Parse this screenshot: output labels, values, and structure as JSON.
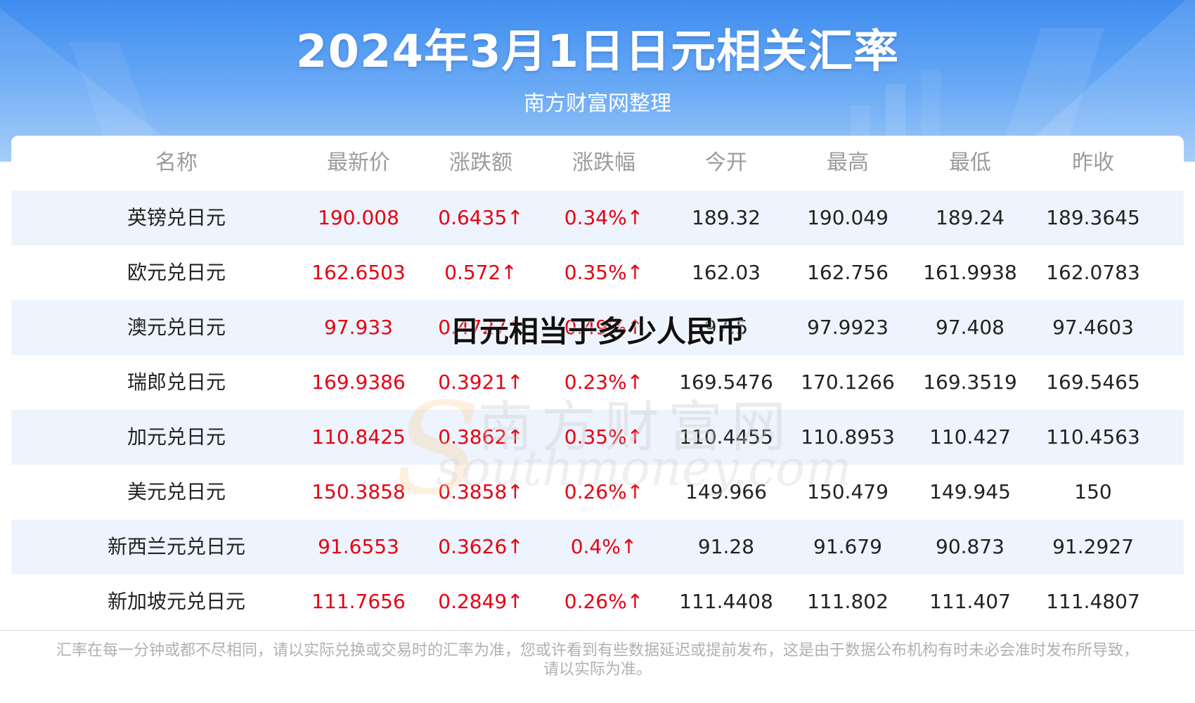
{
  "header": {
    "title": "2024年3月1日日元相关汇率",
    "subtitle": "南方财富网整理"
  },
  "table": {
    "columns": [
      "名称",
      "最新价",
      "涨跌额",
      "涨跌幅",
      "今开",
      "最高",
      "最低",
      "昨收"
    ],
    "rows": [
      [
        "英镑兑日元",
        "190.008",
        "0.6435↑",
        "0.34%↑",
        "189.32",
        "190.049",
        "189.24",
        "189.3645"
      ],
      [
        "欧元兑日元",
        "162.6503",
        "0.572↑",
        "0.35%↑",
        "162.03",
        "162.756",
        "161.9938",
        "162.0783"
      ],
      [
        "澳元兑日元",
        "97.933",
        "0.4727↑",
        "0.49%↑",
        "97.5",
        "97.9923",
        "97.408",
        "97.4603"
      ],
      [
        "瑞郎兑日元",
        "169.9386",
        "0.3921↑",
        "0.23%↑",
        "169.5476",
        "170.1266",
        "169.3519",
        "169.5465"
      ],
      [
        "加元兑日元",
        "110.8425",
        "0.3862↑",
        "0.35%↑",
        "110.4455",
        "110.8953",
        "110.427",
        "110.4563"
      ],
      [
        "美元兑日元",
        "150.3858",
        "0.3858↑",
        "0.26%↑",
        "149.966",
        "150.479",
        "149.945",
        "150"
      ],
      [
        "新西兰元兑日元",
        "91.6553",
        "0.3626↑",
        "0.4%↑",
        "91.28",
        "91.679",
        "90.873",
        "91.2927"
      ],
      [
        "新加坡元兑日元",
        "111.7656",
        "0.2849↑",
        "0.26%↑",
        "111.4408",
        "111.802",
        "111.407",
        "111.4807"
      ]
    ]
  },
  "overlay_text": "日元相当于多少人民币",
  "watermark": {
    "cn": "南方财富网",
    "en": "southmoney.com"
  },
  "footer": {
    "disclaimer": "汇率在每一分钟或都不尽相同，请以实际兑换或交易时的汇率为准，您或许看到有些数据延迟或提前发布，这是由于数据公布机构有时未必会准时发布所导致，请以实际为准。"
  },
  "colors": {
    "up": "#e60012",
    "header_blue": "#3f8df0",
    "alt_row": "#eef4fd"
  }
}
